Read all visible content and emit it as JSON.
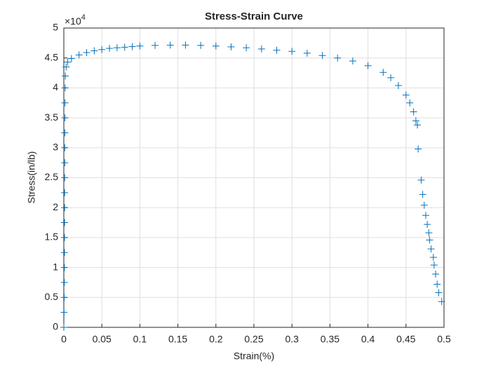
{
  "chart_data": {
    "type": "scatter",
    "title": "Stress-Strain Curve",
    "x_label": "Strain(%)",
    "y_label": "Stress(in/lb)",
    "y_exponent": {
      "base": "×10",
      "power": "4"
    },
    "marker": "+",
    "grid": true,
    "xlim": [
      0,
      0.5
    ],
    "xticks": [
      0,
      0.05,
      0.1,
      0.15,
      0.2,
      0.25,
      0.3,
      0.35,
      0.4,
      0.45,
      0.5
    ],
    "ylim": [
      0,
      50000
    ],
    "yticks": [
      {
        "value": 0,
        "label": "0"
      },
      {
        "value": 5000,
        "label": "0.5"
      },
      {
        "value": 10000,
        "label": "1"
      },
      {
        "value": 15000,
        "label": "1.5"
      },
      {
        "value": 20000,
        "label": "2"
      },
      {
        "value": 25000,
        "label": "2.5"
      },
      {
        "value": 30000,
        "label": "3"
      },
      {
        "value": 35000,
        "label": "3.5"
      },
      {
        "value": 40000,
        "label": "4"
      },
      {
        "value": 45000,
        "label": "4.5"
      },
      {
        "value": 50000,
        "label": "5"
      }
    ],
    "series": [
      {
        "color": "#0072bd",
        "x": [
          0,
          0.0003,
          0.0005,
          0.0006,
          0.0007,
          0.0008,
          0.0008,
          0.0009,
          0.001,
          0.001,
          0.0011,
          0.0012,
          0.0012,
          0.0013,
          0.0014,
          0.0015,
          0.0017,
          0.002,
          0.003,
          0.005,
          0.01,
          0.02,
          0.03,
          0.04,
          0.05,
          0.06,
          0.07,
          0.08,
          0.09,
          0.1,
          0.12,
          0.14,
          0.16,
          0.18,
          0.2,
          0.22,
          0.24,
          0.26,
          0.28,
          0.3,
          0.32,
          0.34,
          0.36,
          0.38,
          0.4,
          0.42,
          0.43,
          0.44,
          0.45,
          0.455,
          0.46,
          0.463,
          0.465,
          0.466,
          0.47,
          0.472,
          0.474,
          0.476,
          0.478,
          0.48,
          0.481,
          0.483,
          0.486,
          0.487,
          0.489,
          0.491,
          0.493,
          0.497
        ],
        "values": [
          0,
          2500,
          5000,
          7500,
          10000,
          12500,
          15000,
          17500,
          20000,
          22500,
          25000,
          27500,
          30000,
          32500,
          35000,
          37500,
          40000,
          42000,
          43500,
          44300,
          44900,
          45500,
          45900,
          46200,
          46400,
          46600,
          46700,
          46800,
          46900,
          47000,
          47100,
          47150,
          47150,
          47100,
          47000,
          46850,
          46700,
          46500,
          46300,
          46100,
          45800,
          45400,
          45000,
          44500,
          43700,
          42600,
          41700,
          40400,
          38800,
          37500,
          36000,
          34500,
          33800,
          29800,
          24600,
          22200,
          20400,
          18700,
          17200,
          15800,
          14600,
          13100,
          11700,
          10400,
          8900,
          7200,
          5800,
          4300
        ]
      }
    ]
  }
}
